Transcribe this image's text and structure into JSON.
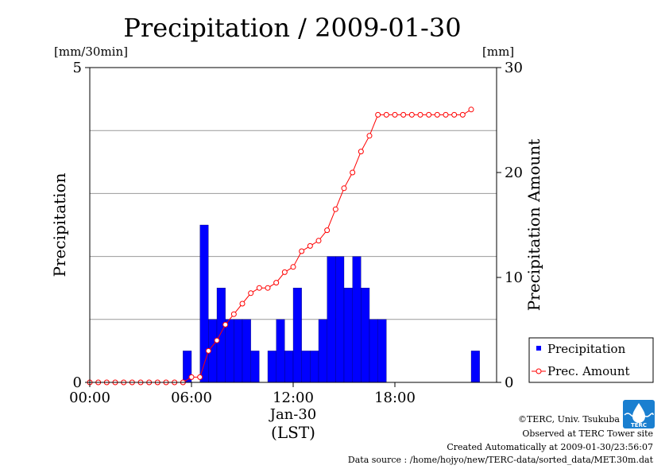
{
  "chart_data": {
    "type": "bar",
    "title": "Precipitation / 2009-01-30",
    "left_unit": "[mm/30min]",
    "right_unit": "[mm]",
    "ylabel_left": "Precipitation",
    "ylabel_right": "Precipitation Amount",
    "ylim_left": [
      0,
      5
    ],
    "ylim_right": [
      0,
      30
    ],
    "left_ticks": [
      "0",
      "5"
    ],
    "right_ticks": [
      "0",
      "10",
      "20",
      "30"
    ],
    "x_ticks": [
      "00:00",
      "06:00",
      "12:00",
      "18:00"
    ],
    "xlabel_date": "Jan-30",
    "xlabel_tz": "(LST)",
    "grid": true,
    "legend_position": "right",
    "series": [
      {
        "name": "Precipitation",
        "type": "bar",
        "color": "#0000ff",
        "x_hours": [
          0,
          0.5,
          1,
          1.5,
          2,
          2.5,
          3,
          3.5,
          4,
          4.5,
          5,
          5.5,
          6,
          6.5,
          7,
          7.5,
          8,
          8.5,
          9,
          9.5,
          10,
          10.5,
          11,
          11.5,
          12,
          12.5,
          13,
          13.5,
          14,
          14.5,
          15,
          15.5,
          16,
          16.5,
          17,
          17.5,
          18,
          18.5,
          19,
          19.5,
          20,
          20.5,
          21,
          21.5,
          22,
          22.5
        ],
        "values": [
          0,
          0,
          0,
          0,
          0,
          0,
          0,
          0,
          0,
          0,
          0,
          0.5,
          0,
          2.5,
          1,
          1.5,
          1,
          1,
          1,
          0.5,
          0,
          0.5,
          1,
          0.5,
          1.5,
          0.5,
          0.5,
          1,
          2,
          2,
          1.5,
          2,
          1.5,
          1,
          1,
          0,
          0,
          0,
          0,
          0,
          0,
          0,
          0,
          0,
          0,
          0.5
        ]
      },
      {
        "name": "Prec. Amount",
        "type": "line",
        "color": "#ff0000",
        "x_hours": [
          0,
          0.5,
          1,
          1.5,
          2,
          2.5,
          3,
          3.5,
          4,
          4.5,
          5,
          5.5,
          6,
          6.5,
          7,
          7.5,
          8,
          8.5,
          9,
          9.5,
          10,
          10.5,
          11,
          11.5,
          12,
          12.5,
          13,
          13.5,
          14,
          14.5,
          15,
          15.5,
          16,
          16.5,
          17,
          17.5,
          18,
          18.5,
          19,
          19.5,
          20,
          20.5,
          21,
          21.5,
          22,
          22.5
        ],
        "values": [
          0,
          0,
          0,
          0,
          0,
          0,
          0,
          0,
          0,
          0,
          0,
          0,
          0.5,
          0.5,
          3,
          4,
          5.5,
          6.5,
          7.5,
          8.5,
          9,
          9,
          9.5,
          10.5,
          11,
          12.5,
          13,
          13.5,
          14.5,
          16.5,
          18.5,
          20,
          22,
          23.5,
          25.5,
          25.5,
          25.5,
          25.5,
          25.5,
          25.5,
          25.5,
          25.5,
          25.5,
          25.5,
          25.5,
          26
        ]
      }
    ]
  },
  "footer": {
    "credit": "©TERC, Univ. Tsukuba",
    "observed": "Observed at TERC Tower site",
    "created": "Created Automatically at 2009-01-30/23:56:07",
    "source": "Data source : /home/hojyo/new/TERC-data/sorted_data/MET.30m.dat"
  },
  "logo": {
    "text": "TERC"
  }
}
